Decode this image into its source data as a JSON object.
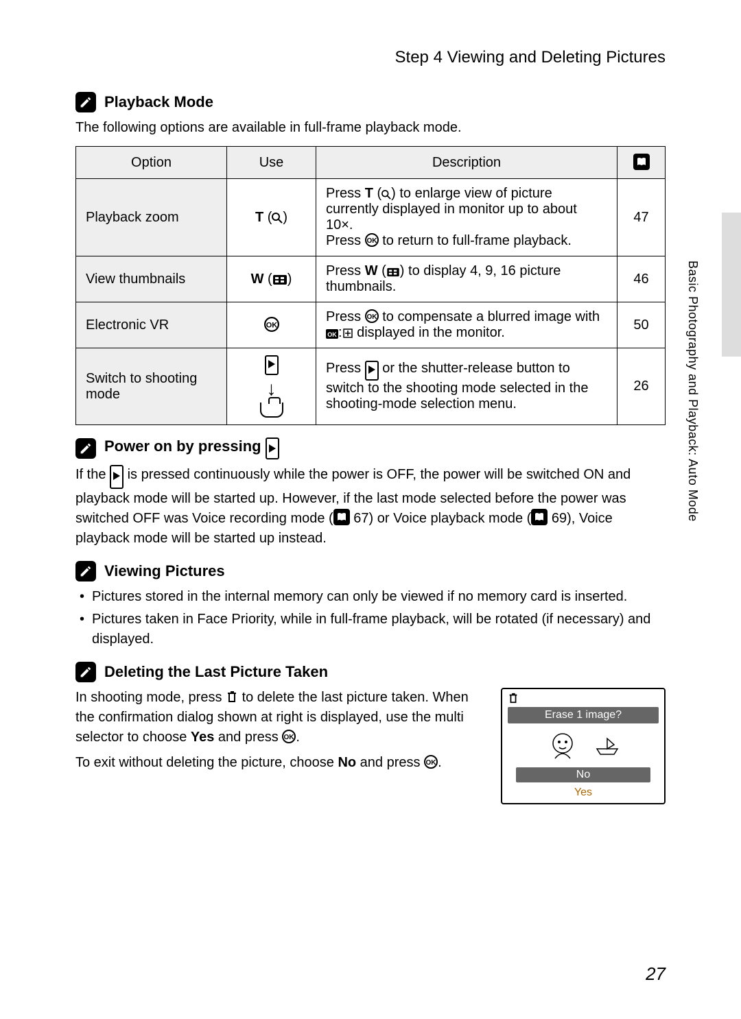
{
  "page": {
    "step_title": "Step 4 Viewing and Deleting Pictures",
    "side_label": "Basic Photography and Playback: Auto Mode",
    "page_number": "27"
  },
  "playback_mode": {
    "title": "Playback Mode",
    "intro": "The following options are available in full-frame playback mode.",
    "headers": {
      "option": "Option",
      "use": "Use",
      "description": "Description"
    },
    "rows": [
      {
        "option": "Playback zoom",
        "use_html": "<span class='bold'>T</span> (<svg class='inline-icon' width='16' height='16' viewBox='0 0 16 16'><circle cx='6' cy='6' r='5' fill='none' stroke='#000' stroke-width='2'/><line x1='10' y1='10' x2='15' y2='15' stroke='#000' stroke-width='2'/></svg>)",
        "desc_html": "Press <span class='bold'>T</span> (<svg class='inline-icon' width='14' height='14' viewBox='0 0 16 16'><circle cx='6' cy='6' r='5' fill='none' stroke='#000' stroke-width='2'/><line x1='10' y1='10' x2='15' y2='15' stroke='#000' stroke-width='2'/></svg>) to enlarge view of picture currently displayed in monitor up to about 10×.<br>Press <svg class='inline-icon' width='20' height='20' viewBox='0 0 20 20'><circle cx='10' cy='10' r='9' fill='none' stroke='#000' stroke-width='2'/><text x='10' y='14' text-anchor='middle' font-size='10' font-weight='700'>OK</text></svg> to return to full-frame playback.",
        "ref": "47"
      },
      {
        "option": "View thumbnails",
        "use_html": "<span class='bold'>W</span> (<svg class='inline-icon' width='22' height='16' viewBox='0 0 22 16'><rect x='1' y='1' width='20' height='14' rx='2' fill='#000'/><rect x='4' y='4' width='5' height='3' fill='#fff'/><rect x='12' y='4' width='5' height='3' fill='#fff'/><rect x='4' y='9' width='5' height='3' fill='#fff'/><rect x='12' y='9' width='5' height='3' fill='#fff'/></svg>)",
        "desc_html": "Press <span class='bold'>W</span> (<svg class='inline-icon' width='20' height='14' viewBox='0 0 22 16'><rect x='1' y='1' width='20' height='14' rx='2' fill='#000'/><rect x='4' y='4' width='5' height='3' fill='#fff'/><rect x='12' y='4' width='5' height='3' fill='#fff'/><rect x='4' y='9' width='5' height='3' fill='#fff'/><rect x='12' y='9' width='5' height='3' fill='#fff'/></svg>) to display 4, 9, 16 picture thumbnails.",
        "ref": "46"
      },
      {
        "option": "Electronic VR",
        "use_html": "<svg class='inline-icon' width='22' height='22' viewBox='0 0 20 20'><circle cx='10' cy='10' r='9' fill='none' stroke='#000' stroke-width='2'/><text x='10' y='14' text-anchor='middle' font-size='10' font-weight='700'>OK</text></svg>",
        "desc_html": "Press <svg class='inline-icon' width='20' height='20' viewBox='0 0 20 20'><circle cx='10' cy='10' r='9' fill='none' stroke='#000' stroke-width='2'/><text x='10' y='14' text-anchor='middle' font-size='10' font-weight='700'>OK</text></svg> to compensate a blurred image with <svg class='inline-icon' width='18' height='14' viewBox='0 0 18 14'><rect x='0' y='0' width='18' height='14' rx='2' fill='#000'/><text x='9' y='11' text-anchor='middle' font-size='9' fill='#fff' font-weight='700'>OK</text></svg>:<svg class='inline-icon' width='16' height='16' viewBox='0 0 16 16'><rect x='2' y='2' width='12' height='12' fill='none' stroke='#000' stroke-width='1.5'/><path d='M8 4 L8 12 M4 8 L12 8' stroke='#000' stroke-width='1.5'/></svg> displayed in the monitor.",
        "ref": "50"
      },
      {
        "option": "Switch to shooting mode",
        "use_html": "<span class='switch-stack'><span class='inline-icon boxed'><span class='play-tri'></span></span><span class='arrow-down'>↓</span><span class='camera-outline'></span></span>",
        "desc_html": "Press <span class='inline-icon boxed'><span class='play-tri'></span></span> or the shutter-release button to switch to the shooting mode selected in the shooting-mode selection menu.",
        "ref": "26"
      }
    ]
  },
  "power_on": {
    "title_html": "Power on by pressing <span class='inline-icon boxed'><span class='play-tri'></span></span>",
    "body_html": "If the <span class='inline-icon boxed'><span class='play-tri'></span></span> is pressed continuously while the power is OFF, the power will be switched ON and playback mode will be started up. However, if the last mode selected before the power was switched OFF was Voice recording mode (<span class='book-icon'><svg viewBox='0 0 16 16'><path d='M2 3 Q4 1 8 3 Q12 1 14 3 V13 Q12 11 8 13 Q4 11 2 13 Z' fill='#fff'/></svg></span> 67) or Voice playback mode (<span class='book-icon'><svg viewBox='0 0 16 16'><path d='M2 3 Q4 1 8 3 Q12 1 14 3 V13 Q12 11 8 13 Q4 11 2 13 Z' fill='#fff'/></svg></span> 69), Voice playback mode will be started up instead."
  },
  "viewing": {
    "title": "Viewing Pictures",
    "bullets": [
      "Pictures stored in the internal memory can only be viewed if no memory card is inserted.",
      "Pictures taken in Face Priority, while in full-frame playback, will be rotated (if necessary) and displayed."
    ]
  },
  "deleting": {
    "title": "Deleting the Last Picture Taken",
    "p1_html": "In shooting mode, press <svg class='inline-icon' width='18' height='20' viewBox='0 0 18 20'><path d='M3 5 H15 M5 5 V17 H13 V5 M7 3 H11 V5' fill='none' stroke='#000' stroke-width='2'/></svg> to delete the last picture taken. When the confirmation dialog shown at right is displayed, use the multi selector to choose <span class='bold'>Yes</span> and press <svg class='inline-icon' width='20' height='20' viewBox='0 0 20 20'><circle cx='10' cy='10' r='9' fill='none' stroke='#000' stroke-width='2'/><text x='10' y='14' text-anchor='middle' font-size='10' font-weight='700'>OK</text></svg>.",
    "p2_html": "To exit without deleting the picture, choose <span class='bold'>No</span> and press <svg class='inline-icon' width='20' height='20' viewBox='0 0 20 20'><circle cx='10' cy='10' r='9' fill='none' stroke='#000' stroke-width='2'/><text x='10' y='14' text-anchor='middle' font-size='10' font-weight='700'>OK</text></svg>."
  },
  "dialog": {
    "prompt": "Erase 1 image?",
    "no": "No",
    "yes": "Yes"
  }
}
